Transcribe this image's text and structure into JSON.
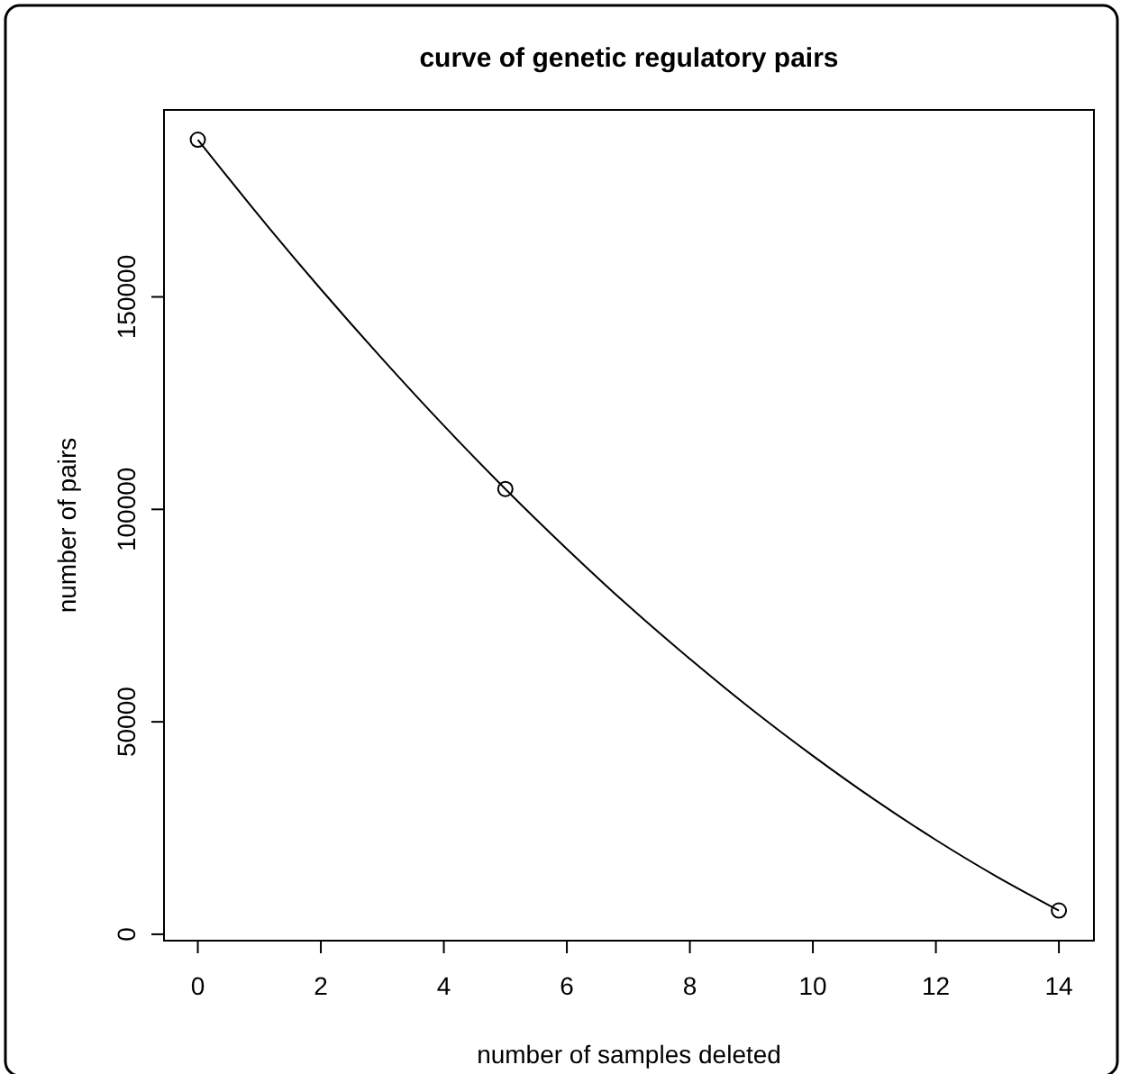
{
  "chart_data": {
    "type": "line",
    "title": "curve of genetic regulatory pairs",
    "xlabel": "number of samples deleted",
    "ylabel": "number of pairs",
    "xlim": [
      -0.55,
      14.57
    ],
    "ylim": [
      -1500,
      194000
    ],
    "xticks": [
      0,
      2,
      4,
      6,
      8,
      10,
      12,
      14
    ],
    "yticks": [
      0,
      50000,
      100000,
      150000
    ],
    "grid": false,
    "series": [
      {
        "color": "#000000",
        "marker": "none",
        "line_style": "solid",
        "x": [
          0,
          1,
          2,
          3,
          4,
          5,
          6,
          7,
          8,
          9,
          10,
          11,
          12,
          13,
          14
        ],
        "values": [
          187000,
          169000,
          151800,
          135400,
          119700,
          104800,
          90700,
          77300,
          64800,
          53000,
          42000,
          31700,
          22200,
          13500,
          5600
        ]
      },
      {
        "type": "scatter",
        "color": "#000000",
        "marker": "circle",
        "x": [
          0,
          5,
          14
        ],
        "values": [
          187000,
          104800,
          5600
        ]
      }
    ]
  }
}
